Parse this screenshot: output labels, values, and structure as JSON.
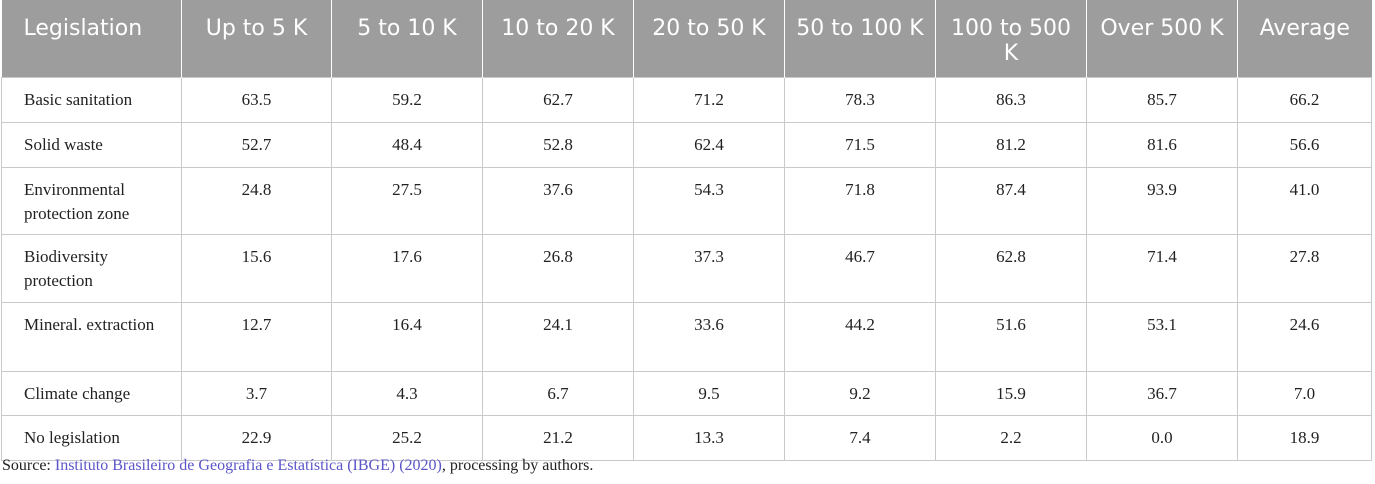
{
  "table": {
    "header": [
      "Legislation",
      "Up to 5 K",
      "5 to 10 K",
      "10 to 20 K",
      "20 to 50 K",
      "50 to 100 K",
      "100 to 500 K",
      "Over 500 K",
      "Average"
    ],
    "rows": [
      [
        "Basic sanitation",
        "63.5",
        "59.2",
        "62.7",
        "71.2",
        "78.3",
        "86.3",
        "85.7",
        "66.2"
      ],
      [
        "Solid waste",
        "52.7",
        "48.4",
        "52.8",
        "62.4",
        "71.5",
        "81.2",
        "81.6",
        "56.6"
      ],
      [
        "Environmental protection zone",
        "24.8",
        "27.5",
        "37.6",
        "54.3",
        "71.8",
        "87.4",
        "93.9",
        "41.0"
      ],
      [
        "Biodiversity protection",
        "15.6",
        "17.6",
        "26.8",
        "37.3",
        "46.7",
        "62.8",
        "71.4",
        "27.8"
      ],
      [
        "Mineral. extraction",
        "12.7",
        "16.4",
        "24.1",
        "33.6",
        "44.2",
        "51.6",
        "53.1",
        "24.6"
      ],
      [
        "Climate change",
        "3.7",
        "4.3",
        "6.7",
        "9.5",
        "9.2",
        "15.9",
        "36.7",
        "7.0"
      ],
      [
        "No legislation",
        "22.9",
        "25.2",
        "21.2",
        "13.3",
        "7.4",
        "2.2",
        "0.0",
        "18.9"
      ]
    ]
  },
  "source": {
    "prefix": "Source:",
    "link": "Instituto Brasileiro de Geografia e Estatística (IBGE) (2020)",
    "suffix": ", processing by authors."
  }
}
